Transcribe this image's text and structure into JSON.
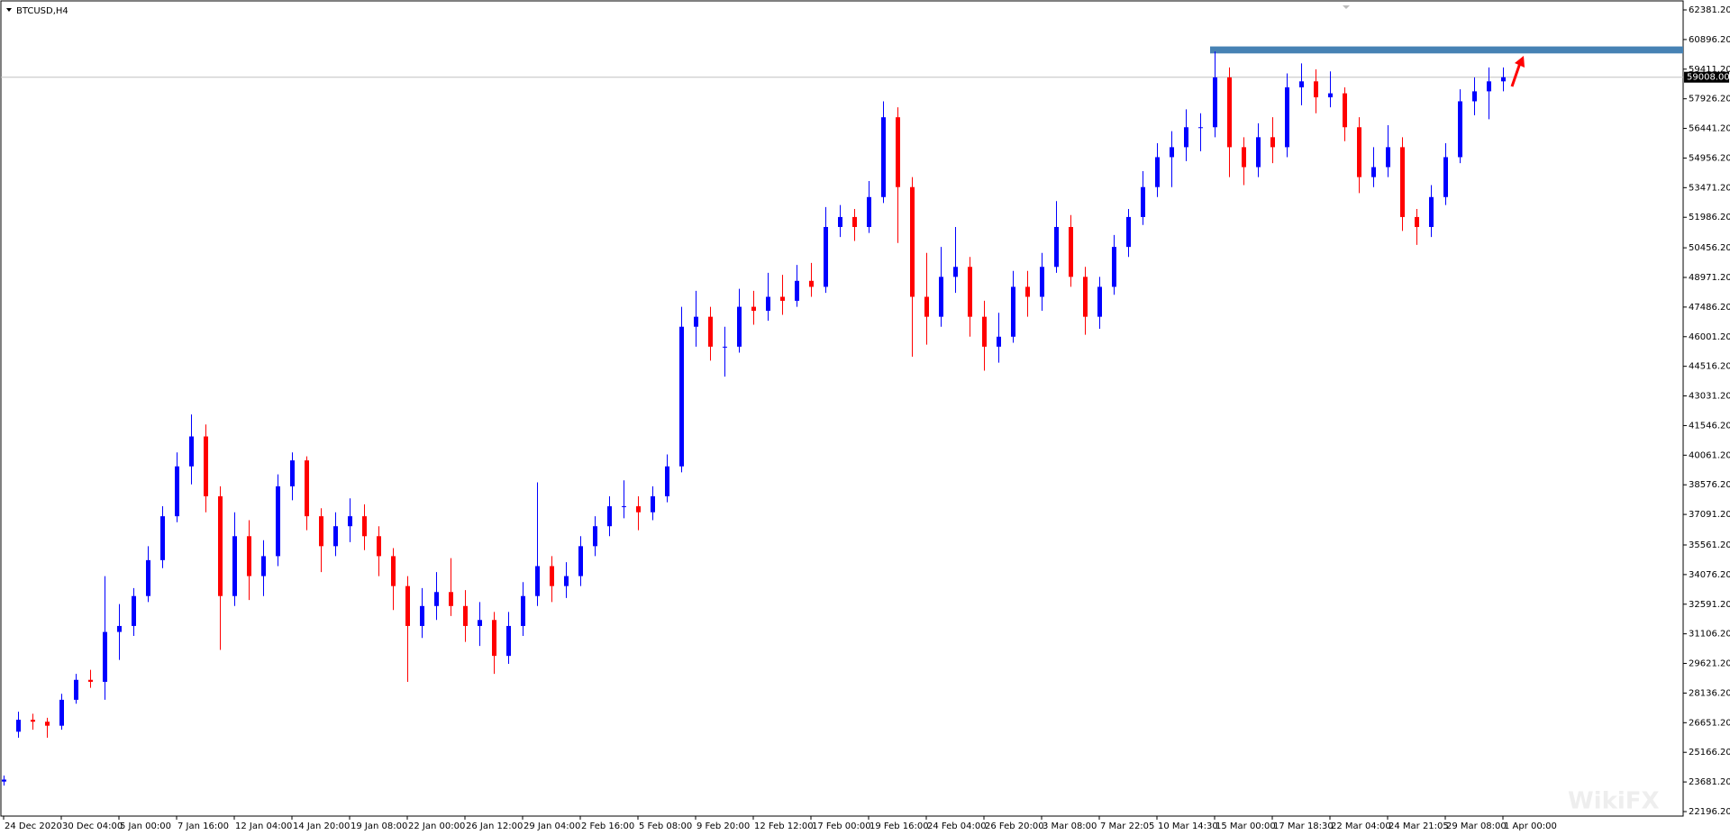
{
  "chart_data": {
    "type": "candlestick",
    "title": "BTCUSD,H4",
    "up_color": "#0000ff",
    "down_color": "#ff0000",
    "categories": [
      "24 Dec 2020",
      null,
      null,
      null,
      "30 Dec 04:00",
      null,
      null,
      null,
      "5 Jan 00:00",
      null,
      null,
      null,
      "7 Jan 16:00",
      null,
      null,
      null,
      "12 Jan 04:00",
      null,
      null,
      null,
      "14 Jan 20:00",
      null,
      null,
      null,
      "19 Jan 08:00",
      null,
      null,
      null,
      "22 Jan 00:00",
      null,
      null,
      null,
      "26 Jan 12:00",
      null,
      null,
      null,
      "29 Jan 04:00",
      null,
      null,
      null,
      "2 Feb 16:00",
      null,
      null,
      null,
      "5 Feb 08:00",
      null,
      null,
      null,
      "9 Feb 20:00",
      null,
      null,
      null,
      "12 Feb 12:00",
      null,
      null,
      null,
      "17 Feb 00:00",
      null,
      null,
      null,
      "19 Feb 16:00",
      null,
      null,
      null,
      "24 Feb 04:00",
      null,
      null,
      null,
      "26 Feb 20:00",
      null,
      null,
      null,
      "3 Mar 08:00",
      null,
      null,
      null,
      "7 Mar 22:05",
      null,
      null,
      null,
      "10 Mar 14:30",
      null,
      null,
      null,
      "15 Mar 00:00",
      null,
      null,
      null,
      "17 Mar 18:30",
      null,
      null,
      null,
      "22 Mar 04:00",
      null,
      null,
      null,
      "24 Mar 21:05",
      null,
      null,
      null,
      "29 Mar 08:00",
      null,
      null,
      null,
      "1 Apr 00:00"
    ],
    "ohlc": [
      [
        23700,
        24000,
        23500,
        23800
      ],
      [
        26200,
        27200,
        25900,
        26800
      ],
      [
        26800,
        27100,
        26300,
        26700
      ],
      [
        26700,
        26900,
        25900,
        26500
      ],
      [
        26500,
        28100,
        26300,
        27800
      ],
      [
        27800,
        29100,
        27600,
        28800
      ],
      [
        28800,
        29300,
        28400,
        28700
      ],
      [
        28700,
        34000,
        27800,
        31200
      ],
      [
        31200,
        32600,
        29800,
        31500
      ],
      [
        31500,
        33400,
        31000,
        33000
      ],
      [
        33000,
        35500,
        32700,
        34800
      ],
      [
        34800,
        37500,
        34400,
        37000
      ],
      [
        37000,
        40200,
        36700,
        39500
      ],
      [
        39500,
        42100,
        38600,
        41000
      ],
      [
        41000,
        41600,
        37200,
        38000
      ],
      [
        38000,
        38500,
        30300,
        33000
      ],
      [
        33000,
        37200,
        32500,
        36000
      ],
      [
        36000,
        36800,
        32800,
        34000
      ],
      [
        34000,
        35800,
        33000,
        35000
      ],
      [
        35000,
        39100,
        34500,
        38500
      ],
      [
        38500,
        40200,
        37800,
        39800
      ],
      [
        39800,
        40000,
        36300,
        37000
      ],
      [
        37000,
        37400,
        34200,
        35500
      ],
      [
        35500,
        37200,
        35000,
        36500
      ],
      [
        36500,
        37900,
        35700,
        37000
      ],
      [
        37000,
        37600,
        35300,
        36000
      ],
      [
        36000,
        36500,
        34000,
        35000
      ],
      [
        35000,
        35400,
        32300,
        33500
      ],
      [
        33500,
        34000,
        28700,
        31500
      ],
      [
        31500,
        33400,
        30900,
        32500
      ],
      [
        32500,
        34200,
        31800,
        33200
      ],
      [
        33200,
        34900,
        32000,
        32500
      ],
      [
        32500,
        33300,
        30700,
        31500
      ],
      [
        31500,
        32700,
        30500,
        31800
      ],
      [
        31800,
        32200,
        29100,
        30000
      ],
      [
        30000,
        32200,
        29600,
        31500
      ],
      [
        31500,
        33700,
        31000,
        33000
      ],
      [
        33000,
        38700,
        32500,
        34500
      ],
      [
        34500,
        35000,
        32700,
        33500
      ],
      [
        33500,
        34700,
        32900,
        34000
      ],
      [
        34000,
        36000,
        33500,
        35500
      ],
      [
        35500,
        37000,
        35000,
        36500
      ],
      [
        36500,
        38000,
        36000,
        37500
      ],
      [
        37500,
        38800,
        36900,
        37500
      ],
      [
        37500,
        38000,
        36300,
        37200
      ],
      [
        37200,
        38500,
        36800,
        38000
      ],
      [
        38000,
        40100,
        37700,
        39500
      ],
      [
        39500,
        47500,
        39200,
        46500
      ],
      [
        46500,
        48300,
        45500,
        47000
      ],
      [
        47000,
        47500,
        44800,
        45500
      ],
      [
        45500,
        46500,
        44000,
        45500
      ],
      [
        45500,
        48400,
        45200,
        47500
      ],
      [
        47500,
        48300,
        46600,
        47300
      ],
      [
        47300,
        49200,
        46800,
        48000
      ],
      [
        48000,
        49100,
        47100,
        47800
      ],
      [
        47800,
        49600,
        47500,
        48800
      ],
      [
        48800,
        49700,
        48000,
        48500
      ],
      [
        48500,
        52500,
        48200,
        51500
      ],
      [
        51500,
        52600,
        51000,
        52000
      ],
      [
        52000,
        52400,
        50800,
        51500
      ],
      [
        51500,
        53800,
        51200,
        53000
      ],
      [
        53000,
        57800,
        52700,
        57000
      ],
      [
        57000,
        57500,
        50700,
        53500
      ],
      [
        53500,
        54000,
        45000,
        48000
      ],
      [
        48000,
        50200,
        45600,
        47000
      ],
      [
        47000,
        50500,
        46500,
        49000
      ],
      [
        49000,
        51500,
        48200,
        49500
      ],
      [
        49500,
        50000,
        46000,
        47000
      ],
      [
        47000,
        47800,
        44300,
        45500
      ],
      [
        45500,
        47200,
        44700,
        46000
      ],
      [
        46000,
        49300,
        45700,
        48500
      ],
      [
        48500,
        49300,
        47000,
        48000
      ],
      [
        48000,
        50200,
        47300,
        49500
      ],
      [
        49500,
        52800,
        49200,
        51500
      ],
      [
        51500,
        52100,
        48500,
        49000
      ],
      [
        49000,
        49500,
        46100,
        47000
      ],
      [
        47000,
        49000,
        46400,
        48500
      ],
      [
        48500,
        51100,
        48100,
        50500
      ],
      [
        50500,
        52400,
        50000,
        52000
      ],
      [
        52000,
        54300,
        51600,
        53500
      ],
      [
        53500,
        55700,
        53000,
        55000
      ],
      [
        55000,
        56300,
        53500,
        55500
      ],
      [
        55500,
        57400,
        54800,
        56500
      ],
      [
        56500,
        57200,
        55300,
        56500
      ],
      [
        56500,
        60300,
        56000,
        59000
      ],
      [
        59000,
        59500,
        54000,
        55500
      ],
      [
        55500,
        56000,
        53600,
        54500
      ],
      [
        54500,
        56700,
        54000,
        56000
      ],
      [
        56000,
        57000,
        54700,
        55500
      ],
      [
        55500,
        59200,
        55000,
        58500
      ],
      [
        58500,
        59700,
        57600,
        58800
      ],
      [
        58800,
        59400,
        57200,
        58000
      ],
      [
        58000,
        59300,
        57500,
        58200
      ],
      [
        58200,
        58500,
        55800,
        56500
      ],
      [
        56500,
        57000,
        53200,
        54000
      ],
      [
        54000,
        55500,
        53500,
        54500
      ],
      [
        54500,
        56600,
        54000,
        55500
      ],
      [
        55500,
        56000,
        51300,
        52000
      ],
      [
        52000,
        52400,
        50600,
        51500
      ],
      [
        51500,
        53600,
        51000,
        53000
      ],
      [
        53000,
        55700,
        52600,
        55000
      ],
      [
        55000,
        58400,
        54700,
        57800
      ],
      [
        57800,
        59000,
        57100,
        58300
      ],
      [
        58300,
        59500,
        56900,
        58800
      ],
      [
        58800,
        59500,
        58300,
        59008
      ]
    ],
    "ylim": [
      21970,
      62878
    ],
    "yticks": [
      {
        "value": 62381.2,
        "label": "62381.20"
      },
      {
        "value": 60896.2,
        "label": "60896.20"
      },
      {
        "value": 59411.2,
        "label": "59411.20"
      },
      {
        "value": 57926.2,
        "label": "57926.20"
      },
      {
        "value": 56441.2,
        "label": "56441.20"
      },
      {
        "value": 54956.2,
        "label": "54956.20"
      },
      {
        "value": 53471.2,
        "label": "53471.20"
      },
      {
        "value": 51986.2,
        "label": "51986.20"
      },
      {
        "value": 50456.2,
        "label": "50456.20"
      },
      {
        "value": 48971.2,
        "label": "48971.20"
      },
      {
        "value": 47486.2,
        "label": "47486.20"
      },
      {
        "value": 46001.2,
        "label": "46001.20"
      },
      {
        "value": 44516.2,
        "label": "44516.20"
      },
      {
        "value": 43031.2,
        "label": "43031.20"
      },
      {
        "value": 41546.2,
        "label": "41546.20"
      },
      {
        "value": 40061.2,
        "label": "40061.20"
      },
      {
        "value": 38576.2,
        "label": "38576.20"
      },
      {
        "value": 37091.2,
        "label": "37091.20"
      },
      {
        "value": 35561.2,
        "label": "35561.20"
      },
      {
        "value": 34076.2,
        "label": "34076.20"
      },
      {
        "value": 32591.2,
        "label": "32591.20"
      },
      {
        "value": 31106.2,
        "label": "31106.20"
      },
      {
        "value": 29621.2,
        "label": "29621.20"
      },
      {
        "value": 28136.2,
        "label": "28136.20"
      },
      {
        "value": 26651.2,
        "label": "26651.20"
      },
      {
        "value": 25166.2,
        "label": "25166.20"
      },
      {
        "value": 23681.2,
        "label": "23681.20"
      },
      {
        "value": 22196.2,
        "label": "22196.20"
      }
    ],
    "current_price": {
      "value": 59008,
      "label": "59008.00"
    },
    "zone": {
      "from": 60200,
      "to": 60550,
      "color": "#4682b4"
    },
    "watermark": "WikiFX"
  }
}
